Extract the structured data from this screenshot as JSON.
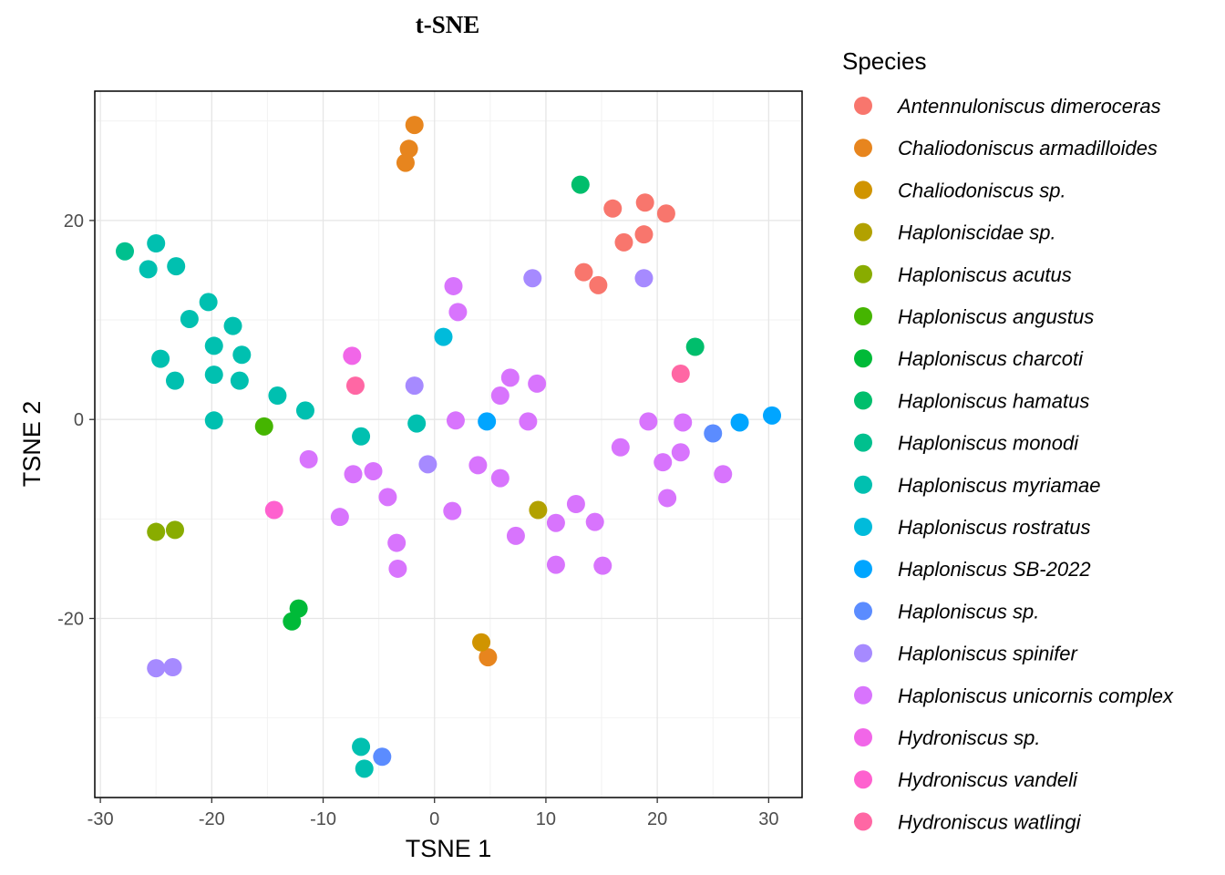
{
  "chart_data": {
    "type": "scatter",
    "title": "t-SNE",
    "xlabel": "TSNE 1",
    "ylabel": "TSNE 2",
    "xlim": [
      -30.5,
      33
    ],
    "ylim": [
      -38,
      33
    ],
    "xticks": [
      -30,
      -20,
      -10,
      0,
      10,
      20,
      30
    ],
    "yticks": [
      -20,
      0,
      20
    ],
    "xticklabels": [
      "-30",
      "-20",
      "-10",
      "0",
      "10",
      "20",
      "30"
    ],
    "yticklabels": [
      "-20",
      "0",
      "20"
    ],
    "grid": true,
    "legend": {
      "title": "Species",
      "position": "right"
    },
    "series": [
      {
        "name": "Antennuloniscus dimeroceras",
        "color": "#F8766D",
        "points": [
          [
            16,
            21.2
          ],
          [
            18.9,
            21.8
          ],
          [
            20.8,
            20.7
          ],
          [
            17,
            17.8
          ],
          [
            18.8,
            18.6
          ],
          [
            13.4,
            14.8
          ],
          [
            14.7,
            13.5
          ]
        ]
      },
      {
        "name": "Chaliodoniscus armadilloides",
        "color": "#E7851E",
        "points": [
          [
            -1.8,
            29.6
          ],
          [
            -2.3,
            27.2
          ],
          [
            -2.6,
            25.8
          ],
          [
            4.8,
            -23.9
          ]
        ]
      },
      {
        "name": "Chaliodoniscus sp.",
        "color": "#D09400",
        "points": [
          [
            4.2,
            -22.4
          ]
        ]
      },
      {
        "name": "Haploniscidae sp.",
        "color": "#B2A100",
        "points": [
          [
            9.3,
            -9.1
          ]
        ]
      },
      {
        "name": "Haploniscus acutus",
        "color": "#89AC00",
        "points": [
          [
            -25,
            -11.3
          ],
          [
            -23.3,
            -11.1
          ]
        ]
      },
      {
        "name": "Haploniscus angustus",
        "color": "#45B500",
        "points": [
          [
            -15.3,
            -0.7
          ]
        ]
      },
      {
        "name": "Haploniscus charcoti",
        "color": "#00BA38",
        "points": [
          [
            -12.2,
            -19
          ],
          [
            -12.8,
            -20.3
          ]
        ]
      },
      {
        "name": "Haploniscus hamatus",
        "color": "#00BE6C",
        "points": [
          [
            13.1,
            23.6
          ],
          [
            23.4,
            7.3
          ]
        ]
      },
      {
        "name": "Haploniscus monodi",
        "color": "#00C08E",
        "points": [
          [
            -27.8,
            16.9
          ]
        ]
      },
      {
        "name": "Haploniscus myriamae",
        "color": "#00C0B0",
        "points": [
          [
            -25,
            17.7
          ],
          [
            -25.7,
            15.1
          ],
          [
            -23.2,
            15.4
          ],
          [
            -20.3,
            11.8
          ],
          [
            -22,
            10.1
          ],
          [
            -18.1,
            9.4
          ],
          [
            -19.8,
            7.4
          ],
          [
            -17.3,
            6.5
          ],
          [
            -24.6,
            6.1
          ],
          [
            -23.3,
            3.9
          ],
          [
            -19.8,
            4.5
          ],
          [
            -17.5,
            3.9
          ],
          [
            -14.1,
            2.4
          ],
          [
            -11.6,
            0.9
          ],
          [
            -19.8,
            -0.1
          ],
          [
            -6.6,
            -1.7
          ],
          [
            -1.6,
            -0.4
          ],
          [
            -6.6,
            -32.9
          ],
          [
            -6.3,
            -35.1
          ]
        ]
      },
      {
        "name": "Haploniscus rostratus",
        "color": "#00BBDB",
        "points": [
          [
            0.8,
            8.3
          ]
        ]
      },
      {
        "name": "Haploniscus SB-2022",
        "color": "#00A5FF",
        "points": [
          [
            4.7,
            -0.2
          ],
          [
            27.4,
            -0.3
          ],
          [
            30.3,
            0.4
          ]
        ]
      },
      {
        "name": "Haploniscus sp.",
        "color": "#5B8CFF",
        "points": [
          [
            25,
            -1.4
          ],
          [
            -4.7,
            -33.9
          ]
        ]
      },
      {
        "name": "Haploniscus spinifer",
        "color": "#A68AFF",
        "points": [
          [
            8.8,
            14.2
          ],
          [
            18.8,
            14.2
          ],
          [
            -1.8,
            3.4
          ],
          [
            -0.6,
            -4.5
          ],
          [
            -25,
            -25
          ],
          [
            -23.5,
            -24.9
          ]
        ]
      },
      {
        "name": "Haploniscus unicornis complex",
        "color": "#D874FD",
        "points": [
          [
            1.7,
            13.4
          ],
          [
            2.1,
            10.8
          ],
          [
            6.8,
            4.2
          ],
          [
            9.2,
            3.6
          ],
          [
            5.9,
            2.4
          ],
          [
            1.9,
            -0.1
          ],
          [
            8.4,
            -0.2
          ],
          [
            19.2,
            -0.2
          ],
          [
            22.3,
            -0.3
          ],
          [
            16.7,
            -2.8
          ],
          [
            22.1,
            -3.3
          ],
          [
            20.5,
            -4.3
          ],
          [
            25.9,
            -5.5
          ],
          [
            -11.3,
            -4
          ],
          [
            -7.3,
            -5.5
          ],
          [
            -5.5,
            -5.2
          ],
          [
            3.9,
            -4.6
          ],
          [
            5.9,
            -5.9
          ],
          [
            -4.2,
            -7.8
          ],
          [
            -8.5,
            -9.8
          ],
          [
            1.6,
            -9.2
          ],
          [
            12.7,
            -8.5
          ],
          [
            20.9,
            -7.9
          ],
          [
            10.9,
            -10.4
          ],
          [
            14.4,
            -10.3
          ],
          [
            7.3,
            -11.7
          ],
          [
            -3.4,
            -12.4
          ],
          [
            -3.3,
            -15
          ],
          [
            10.9,
            -14.6
          ],
          [
            15.1,
            -14.7
          ]
        ]
      },
      {
        "name": "Hydroniscus sp.",
        "color": "#F166E8",
        "points": [
          [
            -7.4,
            6.4
          ]
        ]
      },
      {
        "name": "Hydroniscus vandeli",
        "color": "#FE61CF",
        "points": [
          [
            -14.4,
            -9.1
          ]
        ]
      },
      {
        "name": "Hydroniscus watlingi",
        "color": "#FF67A4",
        "points": [
          [
            -7.1,
            3.4
          ],
          [
            22.1,
            4.6
          ]
        ]
      }
    ]
  }
}
